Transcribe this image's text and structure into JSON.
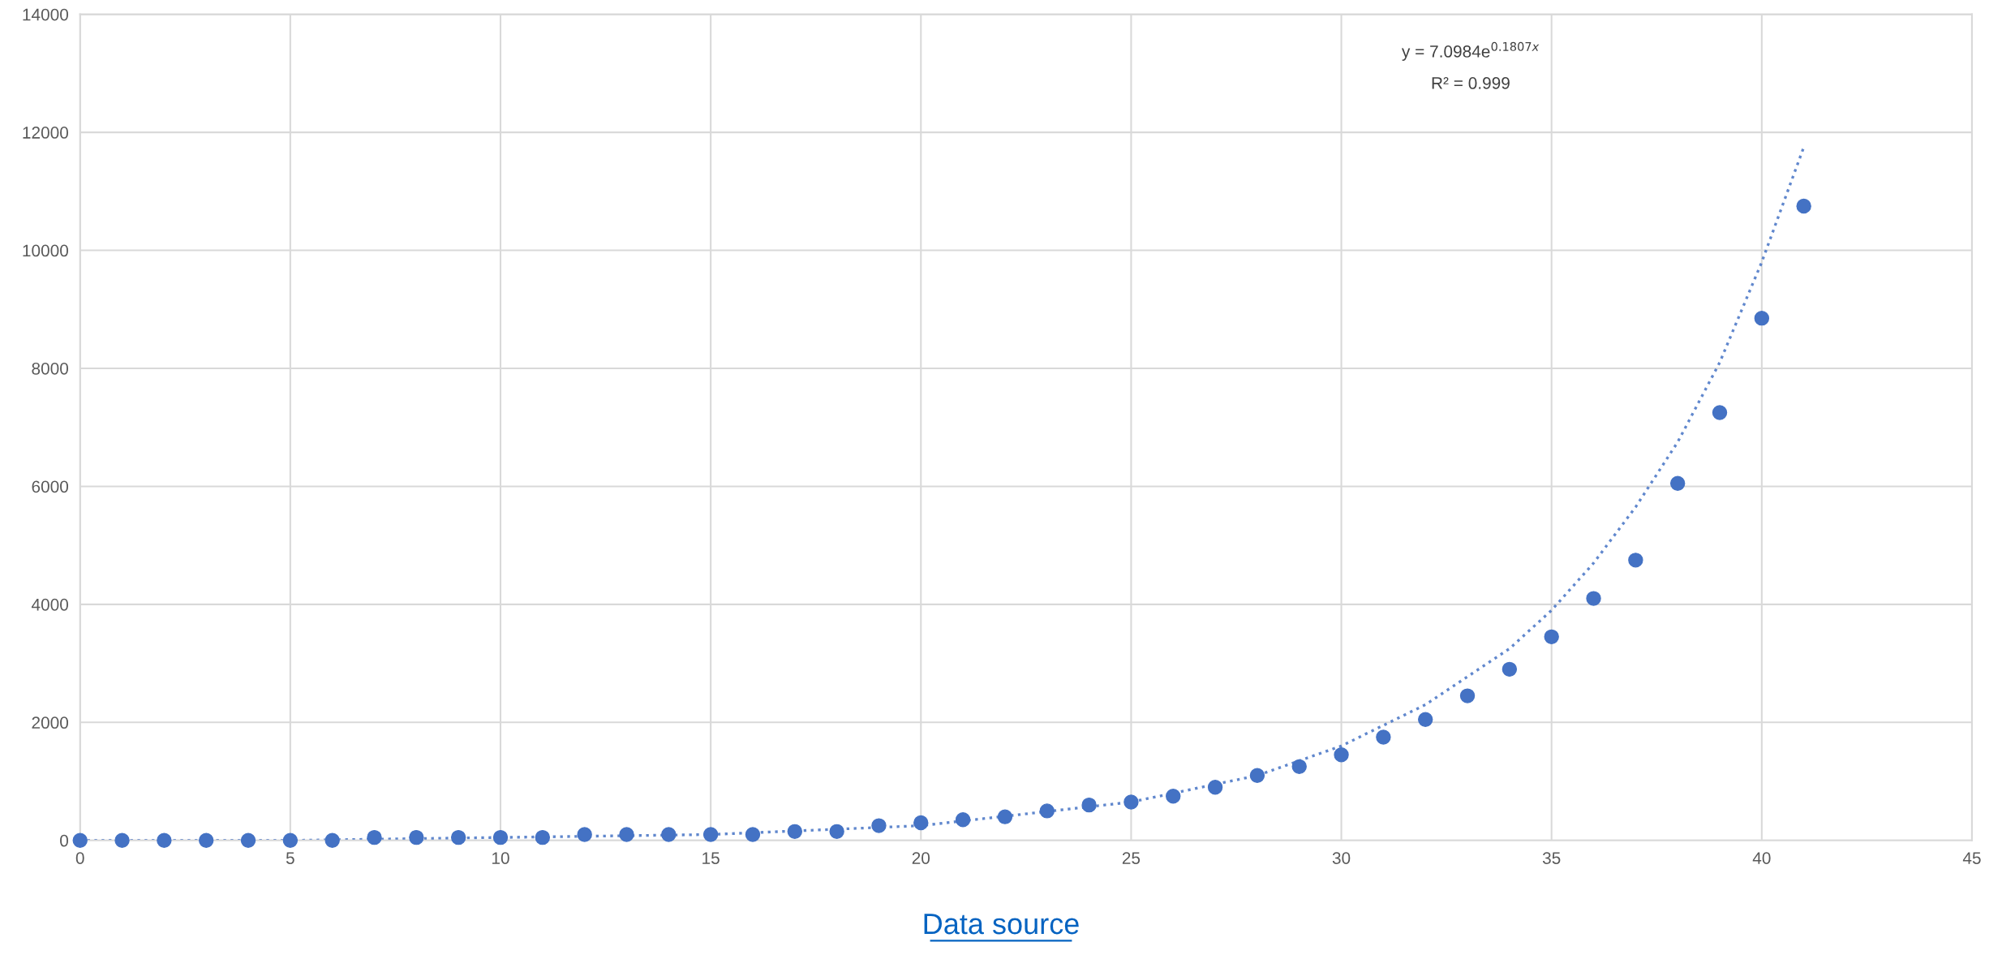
{
  "chart_data": {
    "type": "scatter",
    "xlim": [
      0,
      45
    ],
    "xticks": [
      0,
      5,
      10,
      15,
      20,
      25,
      30,
      35,
      40,
      45
    ],
    "ylim": [
      0,
      14000
    ],
    "yticks": [
      0,
      2000,
      4000,
      6000,
      8000,
      10000,
      12000,
      14000
    ],
    "grid": true,
    "legend": false,
    "marker": "circle",
    "series": [
      {
        "color": "#4472c4",
        "x": [
          0,
          1,
          2,
          3,
          4,
          5,
          6,
          7,
          8,
          9,
          10,
          11,
          12,
          13,
          14,
          15,
          16,
          17,
          18,
          19,
          20,
          21,
          22,
          23,
          24,
          25,
          26,
          27,
          28,
          29,
          30,
          31,
          32,
          33,
          34,
          35,
          36,
          37,
          38,
          39,
          40,
          41
        ],
        "values": [
          0,
          0,
          0,
          0,
          0,
          0,
          0,
          50,
          50,
          50,
          50,
          50,
          100,
          100,
          100,
          100,
          100,
          150,
          150,
          250,
          300,
          350,
          400,
          500,
          600,
          650,
          750,
          900,
          1100,
          1250,
          1450,
          1750,
          2050,
          2450,
          2900,
          3450,
          4100,
          4750,
          6050,
          7250,
          8850,
          10750
        ]
      },
      {
        "type": "line",
        "color": "#4472c4",
        "line_style": "dotted",
        "marker": "none",
        "x": [
          0,
          5,
          10,
          15,
          20,
          25,
          28,
          30,
          32,
          34,
          35,
          36,
          37,
          38,
          39,
          40,
          41
        ],
        "values": [
          0,
          0,
          50,
          100,
          250,
          650,
          1100,
          1600,
          2300,
          3250,
          3900,
          4700,
          5650,
          6750,
          8100,
          9800,
          11750
        ]
      }
    ],
    "annotations": [
      "y = 7.0984e$^{0.1807x}$",
      "R² = 0.999",
      "Data source"
    ]
  }
}
